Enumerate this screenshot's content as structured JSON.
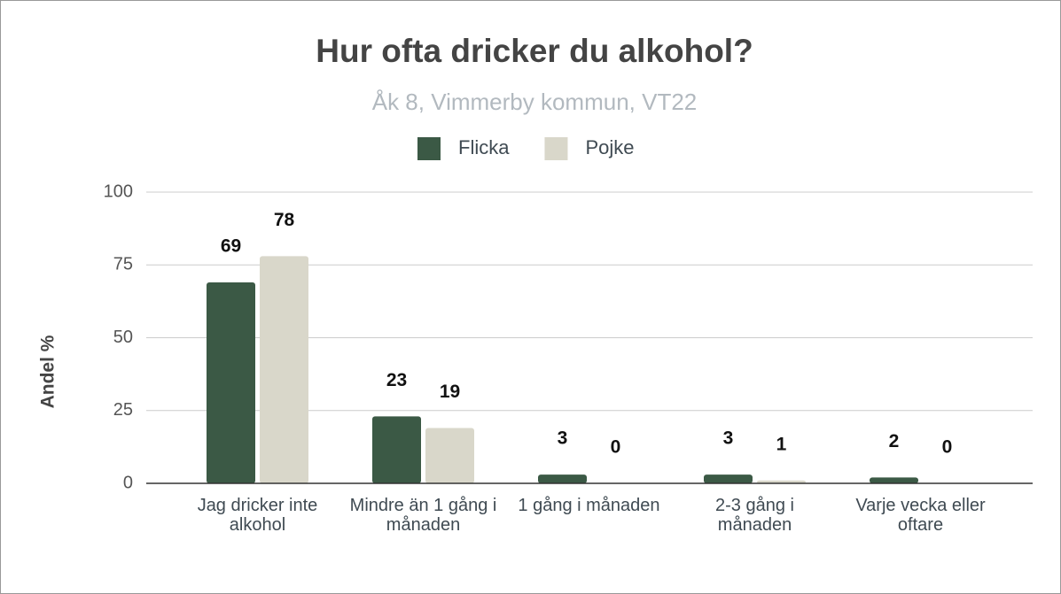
{
  "chart_data": {
    "type": "bar",
    "title": "Hur ofta dricker du alkohol?",
    "subtitle": "Åk 8, Vimmerby kommun, VT22",
    "y_label": "Andel %",
    "categories": [
      "Jag dricker inte alkohol",
      "Mindre än 1 gång i månaden",
      "1 gång i månaden",
      "2-3 gång i månaden",
      "Varje vecka eller oftare"
    ],
    "series": [
      {
        "name": "Flicka",
        "color": "#3b5945",
        "values": [
          69,
          23,
          3,
          3,
          2
        ]
      },
      {
        "name": "Pojke",
        "color": "#d9d7ca",
        "values": [
          78,
          19,
          0,
          1,
          0
        ]
      }
    ],
    "ylim": [
      0,
      100
    ],
    "yticks": [
      0,
      25,
      50,
      75,
      100
    ],
    "grid": true,
    "legend": "top"
  }
}
